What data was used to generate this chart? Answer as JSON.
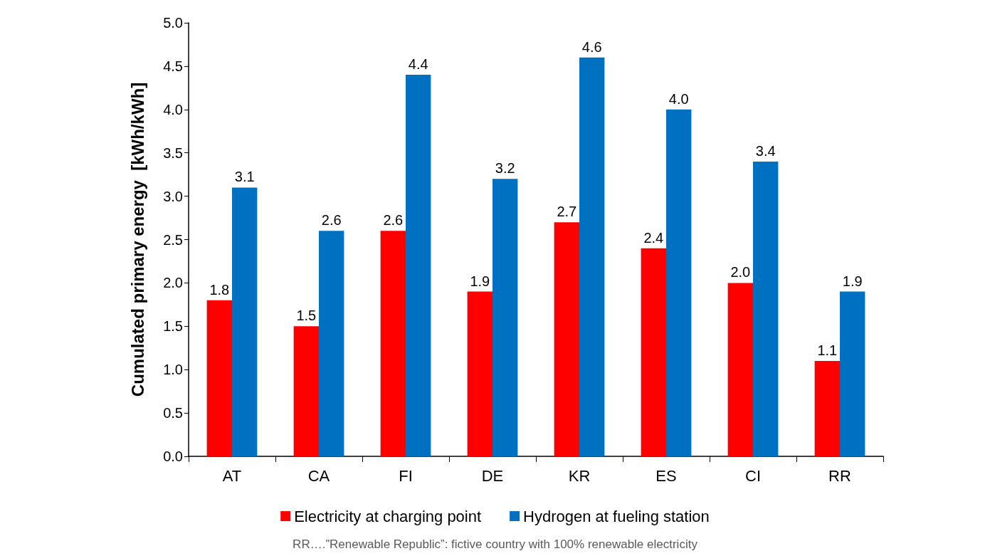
{
  "chart_data": {
    "type": "bar",
    "ylabel": "Cumulated primary energy  [kWh/kWh]",
    "categories": [
      "AT",
      "CA",
      "FI",
      "DE",
      "KR",
      "ES",
      "CI",
      "RR"
    ],
    "series": [
      {
        "name": "Electricity at charging point",
        "color": "#ff0000",
        "values": [
          1.8,
          1.5,
          2.6,
          1.9,
          2.7,
          2.4,
          2.0,
          1.1
        ],
        "value_labels": [
          "1.8",
          "1.5",
          "2.6",
          "1.9",
          "2.7",
          "2.4",
          "2.0",
          "1.1"
        ]
      },
      {
        "name": "Hydrogen at fueling station",
        "color": "#0070c0",
        "values": [
          3.1,
          2.6,
          4.4,
          3.2,
          4.6,
          4.0,
          3.4,
          1.9
        ],
        "value_labels": [
          "3.1",
          "2.6",
          "4.4",
          "3.2",
          "4.6",
          "4.0",
          "3.4",
          "1.9"
        ]
      }
    ],
    "ylim": [
      0,
      5
    ],
    "yticks": [
      {
        "value": 0,
        "label": "0.0"
      },
      {
        "value": 0.5,
        "label": "0.5"
      },
      {
        "value": 1,
        "label": "1.0"
      },
      {
        "value": 1.5,
        "label": "1.5"
      },
      {
        "value": 2,
        "label": "2.0"
      },
      {
        "value": 2.5,
        "label": "2.5"
      },
      {
        "value": 3,
        "label": "3.0"
      },
      {
        "value": 3.5,
        "label": "3.5"
      },
      {
        "value": 4,
        "label": "4.0"
      },
      {
        "value": 4.5,
        "label": "4.5"
      },
      {
        "value": 5,
        "label": "5.0"
      }
    ],
    "grid": false,
    "legend": "bottom",
    "annotations": [
      "RR….”Renewable Republic”: fictive country with 100% renewable electricity"
    ]
  }
}
